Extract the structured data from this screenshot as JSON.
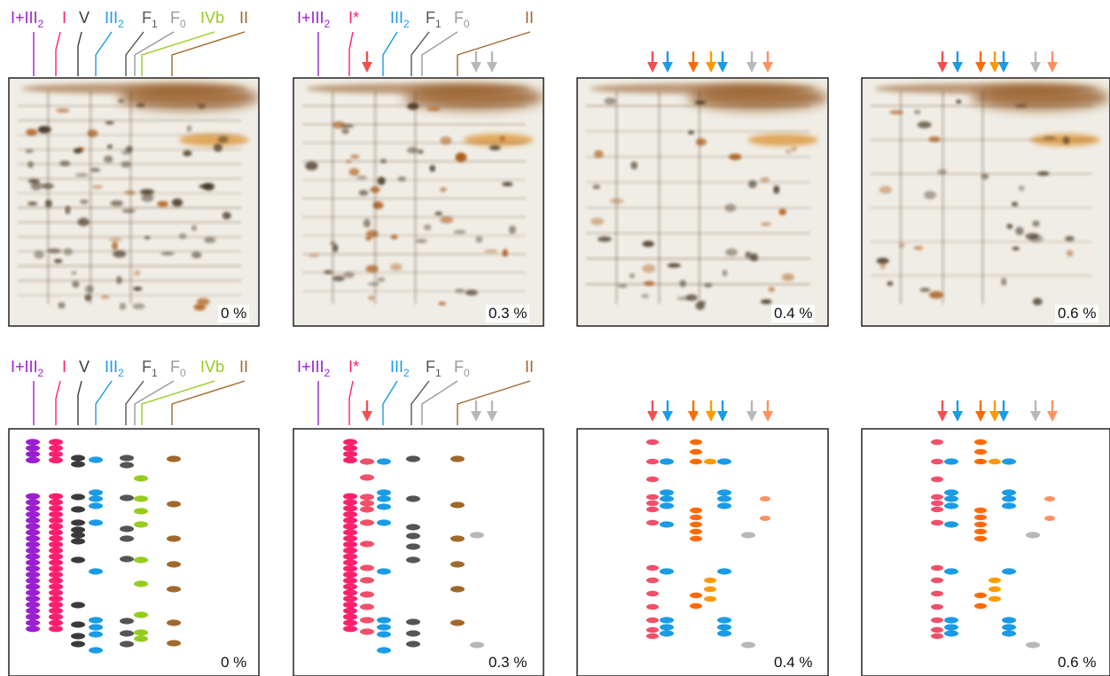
{
  "colors": {
    "complex_I_III2": "#9b1fd0",
    "complex_I": "#ff1f6e",
    "complex_I_light": "#f0506a",
    "complex_V": "#3a3a3a",
    "complex_III2": "#1a9be6",
    "complex_F1": "#555555",
    "complex_F0": "#999999",
    "complex_IVb": "#96cc1e",
    "complex_II": "#a0682a",
    "arrow_red": "#f25050",
    "arrow_blue": "#1a9be6",
    "arrow_orange": "#ff6a00",
    "arrow_amber": "#ff9a00",
    "arrow_gray": "#b8b8b8",
    "arrow_salmon": "#ff9060",
    "gel_background": "#f0ede6",
    "gel_stain": "#8a4a10"
  },
  "labels_full": {
    "I_III2": "I+III",
    "I_III2_sub": "2",
    "I": "I",
    "V": "V",
    "III2": "III",
    "III2_sub": "2",
    "F1": "F",
    "F1_sub": "1",
    "F0": "F",
    "F0_sub": "0",
    "IVb": "IVb",
    "II": "II"
  },
  "labels_partial": {
    "I_III2": "I+III",
    "I_III2_sub": "2",
    "I_star": "I*",
    "III2": "III",
    "III2_sub": "2",
    "F1": "F",
    "F1_sub": "1",
    "F0": "F",
    "F0_sub": "0",
    "II": "II"
  },
  "panels": [
    {
      "row": "gel",
      "concentration": "0 %"
    },
    {
      "row": "gel",
      "concentration": "0.3 %"
    },
    {
      "row": "gel",
      "concentration": "0.4 %"
    },
    {
      "row": "gel",
      "concentration": "0.6 %"
    },
    {
      "row": "schematic",
      "concentration": "0 %"
    },
    {
      "row": "schematic",
      "concentration": "0.3 %"
    },
    {
      "row": "schematic",
      "concentration": "0.4 %"
    },
    {
      "row": "schematic",
      "concentration": "0.6 %"
    }
  ]
}
